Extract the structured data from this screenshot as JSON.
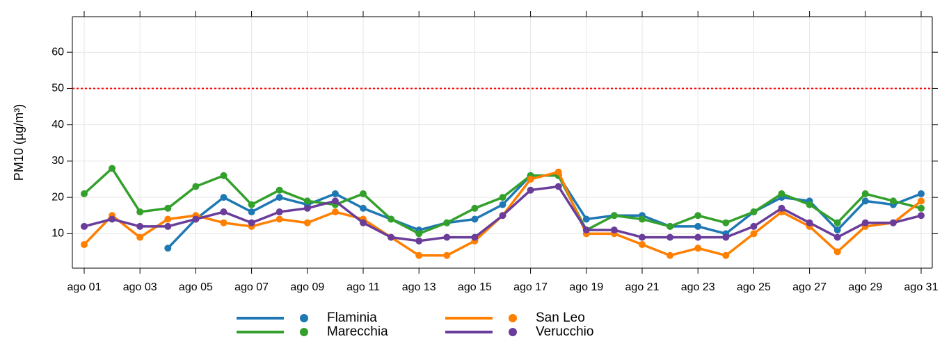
{
  "chart_data": {
    "type": "line",
    "y_label": "PM10 (µg/m³)",
    "categories": [
      "ago 01",
      null,
      "ago 03",
      null,
      "ago 05",
      null,
      "ago 07",
      null,
      "ago 09",
      null,
      "ago 11",
      null,
      "ago 13",
      null,
      "ago 15",
      null,
      "ago 17",
      null,
      "ago 19",
      null,
      "ago 21",
      null,
      "ago 23",
      null,
      "ago 25",
      null,
      "ago 27",
      null,
      "ago 29",
      null,
      "ago 31"
    ],
    "series": [
      {
        "name": "Flaminia",
        "color": "#1f78b4",
        "values": [
          null,
          null,
          null,
          6,
          14,
          20,
          16,
          20,
          18,
          21,
          17,
          14,
          11,
          13,
          14,
          18,
          26,
          26,
          14,
          15,
          15,
          12,
          12,
          10,
          16,
          20,
          19,
          11,
          19,
          18,
          21
        ]
      },
      {
        "name": "Marecchia",
        "color": "#33a02c",
        "values": [
          21,
          28,
          16,
          17,
          23,
          26,
          18,
          22,
          19,
          18,
          21,
          14,
          10,
          13,
          17,
          20,
          26,
          26,
          11,
          15,
          14,
          12,
          15,
          13,
          16,
          21,
          18,
          13,
          21,
          19,
          17
        ]
      },
      {
        "name": "San Leo",
        "color": "#ff7f00",
        "values": [
          7,
          15,
          9,
          14,
          15,
          13,
          12,
          14,
          13,
          16,
          14,
          9,
          4,
          4,
          8,
          15,
          25,
          27,
          10,
          10,
          7,
          4,
          6,
          4,
          10,
          16,
          12,
          5,
          12,
          13,
          19
        ]
      },
      {
        "name": "Verucchio",
        "color": "#6a3d9a",
        "values": [
          12,
          14,
          12,
          12,
          14,
          16,
          13,
          16,
          17,
          19,
          13,
          9,
          8,
          9,
          9,
          15,
          22,
          23,
          11,
          11,
          9,
          9,
          9,
          9,
          12,
          17,
          13,
          9,
          13,
          13,
          15
        ]
      }
    ],
    "threshold": {
      "value": 50,
      "color": "#ff0000"
    },
    "ylim": [
      0.5,
      69.8
    ],
    "yticks": [
      10,
      20,
      30,
      40,
      50,
      60
    ],
    "grid": true,
    "legend": "bottom"
  }
}
